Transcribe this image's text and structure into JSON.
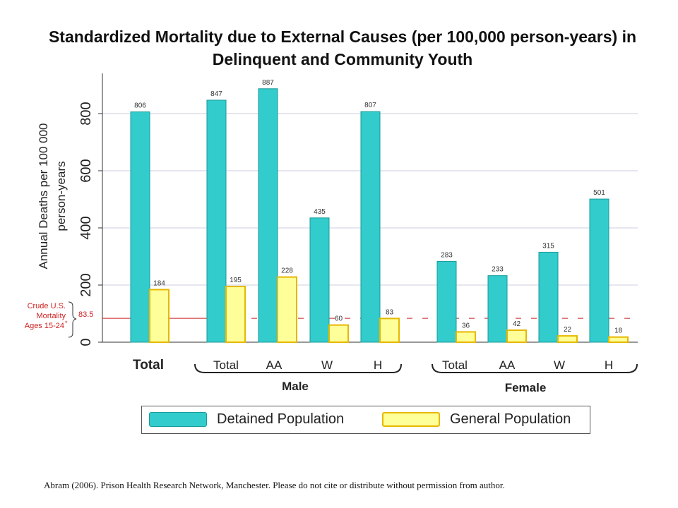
{
  "title": "Standardized Mortality due to External Causes (per 100,000 person-years) in Delinquent and Community Youth",
  "source_note": "Abram (2006). Prison Health Research Network, Manchester.  Please do not cite or distribute without permission  from author.",
  "colors": {
    "detained": "#33cccc",
    "general": "#ffff99",
    "general_border": "#e6b800",
    "reference_line": "#cc2222",
    "grid": "#e6e6f0"
  },
  "chart_data": {
    "type": "bar",
    "title": "Standardized Mortality due to External Causes (per 100,000 person-years) in Delinquent and Community Youth",
    "ylabel_line1": "Annual Deaths per 100 000",
    "ylabel_line2": "person-years",
    "ylim": [
      0,
      950
    ],
    "yticks": [
      0,
      200,
      400,
      600,
      800
    ],
    "grid": true,
    "categories": [
      "Total",
      "Total",
      "AA",
      "W",
      "H",
      "Total",
      "AA",
      "W",
      "H"
    ],
    "groups": [
      {
        "label": "Total",
        "members": [
          0
        ]
      },
      {
        "label": "Male",
        "members": [
          1,
          2,
          3,
          4
        ]
      },
      {
        "label": "Female",
        "members": [
          5,
          6,
          7,
          8
        ]
      }
    ],
    "series": [
      {
        "name": "Detained Population",
        "values": [
          806,
          847,
          887,
          435,
          807,
          283,
          233,
          315,
          501
        ]
      },
      {
        "name": "General Population",
        "values": [
          184,
          195,
          228,
          60,
          83,
          36,
          42,
          22,
          18
        ]
      }
    ],
    "reference_line": {
      "value": 83.5,
      "label": "83.5",
      "annotation": [
        "Crude U.S.",
        "Mortality",
        "Ages 15-24",
        "*"
      ]
    },
    "legend": {
      "placement": "bottom",
      "entries": [
        "Detained Population",
        "General Population"
      ]
    }
  }
}
